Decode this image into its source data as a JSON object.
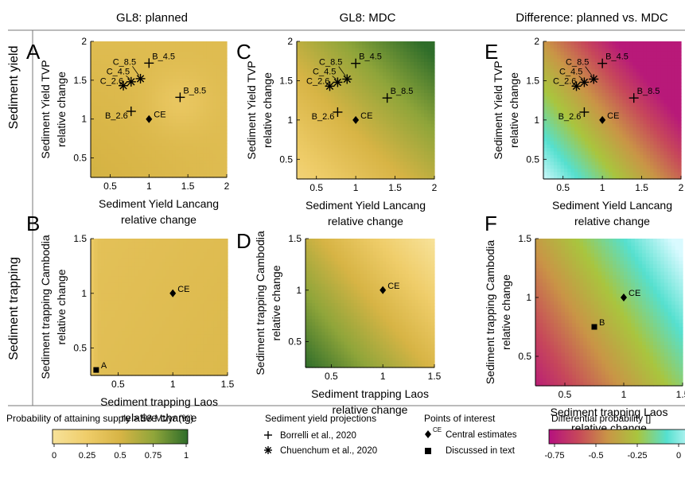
{
  "col_titles": [
    "GL8: planned",
    "GL8: MDC",
    "Difference: planned vs. MDC"
  ],
  "row_titles": [
    "Sediment yield",
    "Sediment trapping"
  ],
  "chart_data": [
    {
      "type": "heatmap",
      "panel": "A",
      "xlabel": [
        "Sediment Yield Lancang",
        "relative change"
      ],
      "ylabel": [
        "Sediment Yield TVP",
        "relative change"
      ],
      "xlim": [
        0.25,
        2
      ],
      "ylim": [
        0.25,
        2
      ],
      "xticks": [
        "0.5",
        "1",
        "1.5",
        "2"
      ],
      "yticks": [
        "0.5",
        "1",
        "1.5",
        "2"
      ],
      "colormap": "probability",
      "value_range": [
        0.8,
        0.95
      ],
      "points": [
        {
          "label": "C_8.5",
          "x": 0.89,
          "y": 1.52,
          "marker": "asterisk"
        },
        {
          "label": "C_4.5",
          "x": 0.77,
          "y": 1.48,
          "marker": "asterisk"
        },
        {
          "label": "C_2.6",
          "x": 0.67,
          "y": 1.43,
          "marker": "asterisk"
        },
        {
          "label": "B_4.5",
          "x": 1.0,
          "y": 1.72,
          "marker": "plus"
        },
        {
          "label": "B_8.5",
          "x": 1.4,
          "y": 1.28,
          "marker": "plus"
        },
        {
          "label": "B_2.6",
          "x": 0.77,
          "y": 1.1,
          "marker": "plus"
        },
        {
          "label": "CE",
          "x": 1.0,
          "y": 1.0,
          "marker": "diamond"
        }
      ]
    },
    {
      "type": "heatmap",
      "panel": "C",
      "xlabel": [
        "Sediment Yield Lancang",
        "relative change"
      ],
      "ylabel": [
        "Sediment Yield TVP",
        "relative change"
      ],
      "xlim": [
        0.25,
        2
      ],
      "ylim": [
        0.25,
        2
      ],
      "xticks": [
        "0.5",
        "1",
        "1.5",
        "2"
      ],
      "yticks": [
        "0.5",
        "1",
        "1.5",
        "2"
      ],
      "colormap": "probability",
      "value_range": [
        0.2,
        1.0
      ],
      "points": [
        {
          "label": "C_8.5",
          "x": 0.89,
          "y": 1.52,
          "marker": "asterisk"
        },
        {
          "label": "C_4.5",
          "x": 0.77,
          "y": 1.48,
          "marker": "asterisk"
        },
        {
          "label": "C_2.6",
          "x": 0.67,
          "y": 1.43,
          "marker": "asterisk"
        },
        {
          "label": "B_4.5",
          "x": 1.0,
          "y": 1.72,
          "marker": "plus"
        },
        {
          "label": "B_8.5",
          "x": 1.4,
          "y": 1.28,
          "marker": "plus"
        },
        {
          "label": "B_2.6",
          "x": 0.77,
          "y": 1.1,
          "marker": "plus"
        },
        {
          "label": "CE",
          "x": 1.0,
          "y": 1.0,
          "marker": "diamond"
        }
      ]
    },
    {
      "type": "heatmap",
      "panel": "E",
      "xlabel": [
        "Sediment Yield Lancang",
        "relative change"
      ],
      "ylabel": [
        "Sediment Yield TVP",
        "relative change"
      ],
      "xlim": [
        0.25,
        2
      ],
      "ylim": [
        0.25,
        2
      ],
      "xticks": [
        "0.5",
        "1",
        "1.5",
        "2"
      ],
      "yticks": [
        "0.5",
        "1",
        "1.5",
        "2"
      ],
      "colormap": "difference",
      "value_range": [
        -0.8,
        0.0
      ],
      "points": [
        {
          "label": "C_8.5",
          "x": 0.89,
          "y": 1.52,
          "marker": "asterisk"
        },
        {
          "label": "C_4.5",
          "x": 0.77,
          "y": 1.48,
          "marker": "asterisk"
        },
        {
          "label": "C_2.6",
          "x": 0.67,
          "y": 1.43,
          "marker": "asterisk"
        },
        {
          "label": "B_4.5",
          "x": 1.0,
          "y": 1.72,
          "marker": "plus"
        },
        {
          "label": "B_8.5",
          "x": 1.4,
          "y": 1.28,
          "marker": "plus"
        },
        {
          "label": "B_2.6",
          "x": 0.77,
          "y": 1.1,
          "marker": "plus"
        },
        {
          "label": "CE",
          "x": 1.0,
          "y": 1.0,
          "marker": "diamond"
        }
      ]
    },
    {
      "type": "heatmap",
      "panel": "B",
      "xlabel": [
        "Sediment trapping Laos",
        "relative change"
      ],
      "ylabel": [
        "Sediment trapping Cambodia",
        "relative change"
      ],
      "xlim": [
        0.25,
        1.5
      ],
      "ylim": [
        0.25,
        1.5
      ],
      "xticks": [
        "0.5",
        "1",
        "1.5"
      ],
      "yticks": [
        "0.5",
        "1",
        "1.5"
      ],
      "colormap": "probability",
      "value_range": [
        0.88,
        0.95
      ],
      "points": [
        {
          "label": "CE",
          "x": 1.0,
          "y": 1.0,
          "marker": "diamond"
        },
        {
          "label": "A",
          "x": 0.3,
          "y": 0.3,
          "marker": "square"
        }
      ]
    },
    {
      "type": "heatmap",
      "panel": "D",
      "xlabel": [
        "Sediment trapping Laos",
        "relative change"
      ],
      "ylabel": [
        "Sediment trapping Cambodia",
        "relative change"
      ],
      "xlim": [
        0.25,
        1.5
      ],
      "ylim": [
        0.25,
        1.5
      ],
      "xticks": [
        "0.5",
        "1",
        "1.5"
      ],
      "yticks": [
        "0.5",
        "1",
        "1.5"
      ],
      "colormap": "probability",
      "value_range": [
        0.15,
        0.95
      ],
      "points": [
        {
          "label": "CE",
          "x": 1.0,
          "y": 1.0,
          "marker": "diamond"
        }
      ]
    },
    {
      "type": "heatmap",
      "panel": "F",
      "xlabel": [
        "Sediment trapping Laos",
        "relative change"
      ],
      "ylabel": [
        "Sediment trapping Cambodia",
        "relative change"
      ],
      "xlim": [
        0.25,
        1.5
      ],
      "ylim": [
        0.25,
        1.5
      ],
      "xticks": [
        "0.5",
        "1",
        "1.5"
      ],
      "yticks": [
        "0.5",
        "1",
        "1.5"
      ],
      "colormap": "difference",
      "value_range": [
        -0.8,
        0.0
      ],
      "points": [
        {
          "label": "CE",
          "x": 1.0,
          "y": 1.0,
          "marker": "diamond"
        },
        {
          "label": "B",
          "x": 0.75,
          "y": 0.75,
          "marker": "square"
        }
      ]
    }
  ],
  "legend": {
    "prob_title": "Probability of attaining supply > 58 Mt/yr (%)",
    "prob_ticks": [
      "0",
      "0.25",
      "0.5",
      "0.75",
      "1"
    ],
    "projections_title": "Sediment yield projections",
    "projections": [
      {
        "marker": "plus",
        "label": "Borrelli et al., 2020"
      },
      {
        "marker": "asterisk",
        "label": "Chuenchum et al., 2020"
      }
    ],
    "poi_title": "Points of interest",
    "poi": [
      {
        "marker": "diamond",
        "label": "Central estimates",
        "sup": "CE"
      },
      {
        "marker": "square",
        "label": "Discussed in text",
        "sup": ""
      }
    ],
    "diff_title": "Differential probability []",
    "diff_ticks": [
      "-0.75",
      "-0.5",
      "-0.25",
      "0"
    ]
  },
  "colors": {
    "prob_stops": [
      "#f7e29a",
      "#efcd6a",
      "#d7b445",
      "#8fa53a",
      "#2f6d2a"
    ],
    "diff_stops": [
      "#b5117f",
      "#c7485a",
      "#c99546",
      "#a9c53e",
      "#55e0cf",
      "#d9faff"
    ]
  }
}
